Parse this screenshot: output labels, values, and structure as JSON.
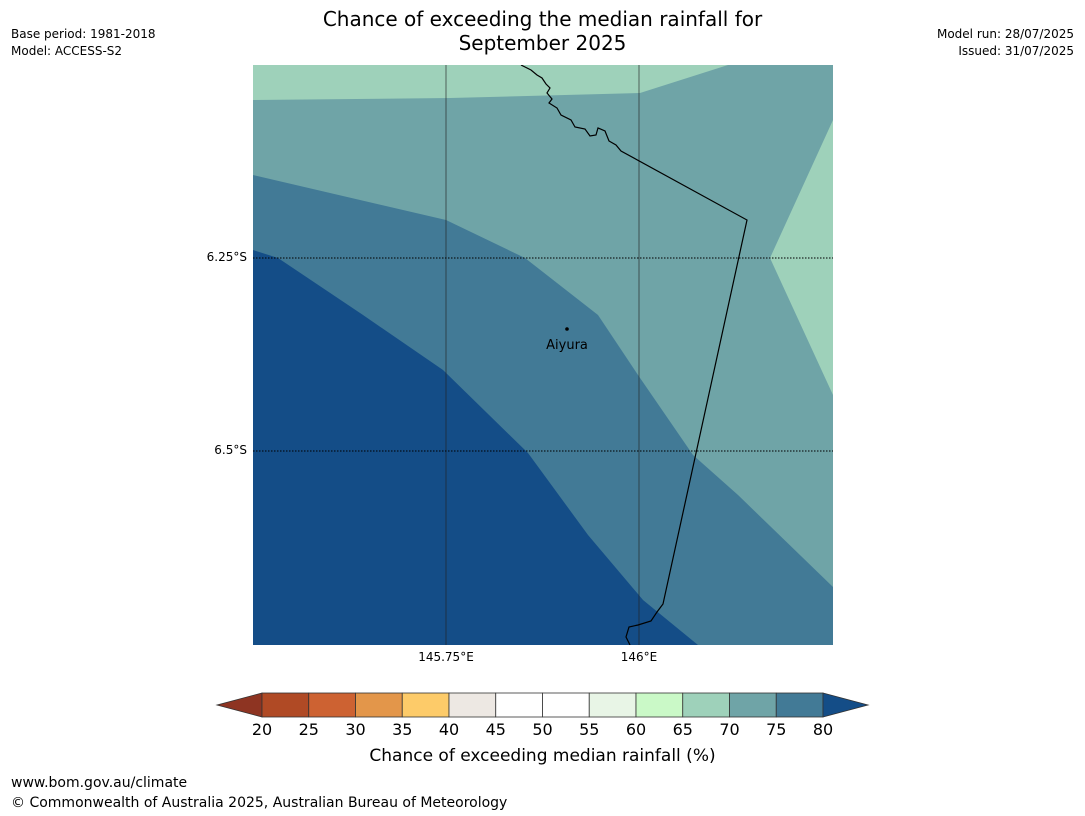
{
  "title_line1": "Chance of exceeding the median rainfall for",
  "title_line2": "September 2025",
  "meta_left": [
    "Base period: 1981-2018",
    "Model: ACCESS-S2"
  ],
  "meta_right": [
    "Model run: 28/07/2025",
    "Issued: 31/07/2025"
  ],
  "map": {
    "place_label": "Aiyura",
    "lat_labels": [
      "6.25°S",
      "6.5°S"
    ],
    "lon_labels": [
      "145.75°E",
      "146°E"
    ],
    "colors": {
      "band_65_70": "#9ed1ba",
      "band_70_75": "#6fa4a7",
      "band_75_80": "#427a96",
      "band_80_plus": "#144d87"
    }
  },
  "colorbar": {
    "ticks": [
      "20",
      "25",
      "30",
      "35",
      "40",
      "45",
      "50",
      "55",
      "60",
      "65",
      "70",
      "75",
      "80"
    ],
    "colors": [
      "#b04a25",
      "#cd6232",
      "#e3964a",
      "#fdcb69",
      "#ede8e3",
      "#ffffff",
      "#ffffff",
      "#e8f5e6",
      "#caf9c7",
      "#9ed1ba",
      "#6fa4a7",
      "#427a96"
    ],
    "under_color": "#8e3422",
    "over_color": "#144d87",
    "label": "Chance of exceeding median rainfall (%)"
  },
  "footer": {
    "url": "www.bom.gov.au/climate",
    "copyright": "© Commonwealth of Australia 2025, Australian Bureau of Meteorology"
  }
}
